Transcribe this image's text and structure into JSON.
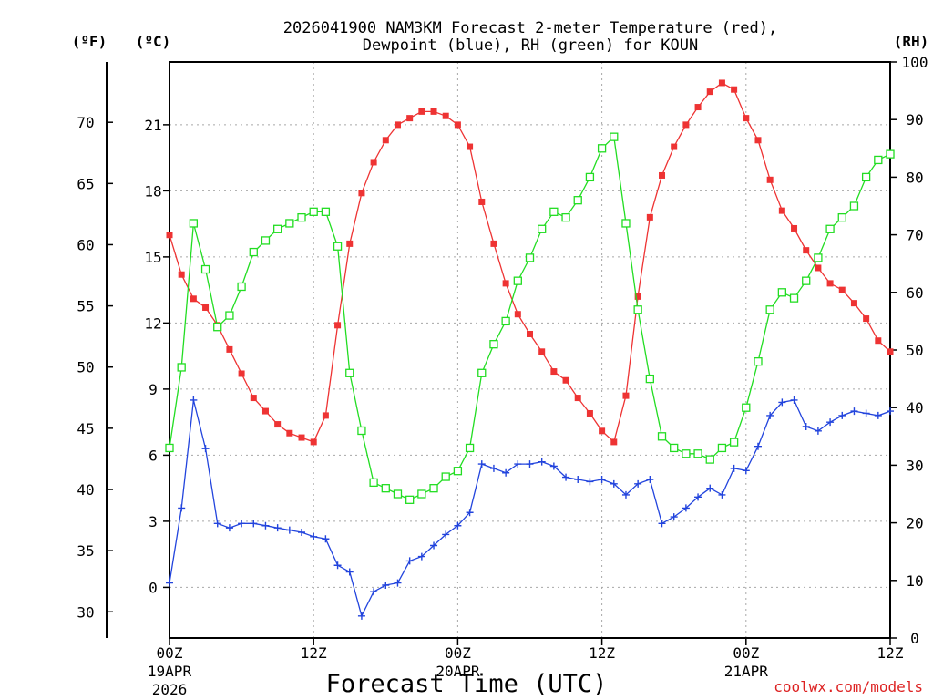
{
  "chart_data": {
    "type": "line",
    "title_line1": "2026041900 NAM3KM Forecast 2-meter Temperature (red),",
    "title_line2": "Dewpoint (blue), RH (green) for KOUN",
    "xlabel": "Forecast Time (UTC)",
    "unit_f": "(ºF)",
    "unit_c": "(ºC)",
    "unit_rh": "(RH)",
    "watermark": "coolwx.com/models",
    "x_range_hours": [
      0,
      60
    ],
    "c_range": [
      -2.3,
      23.85
    ],
    "rh_range": [
      0,
      100
    ],
    "x_ticks": [
      {
        "hour": 0,
        "line1": "00Z",
        "line2": "19APR",
        "line3": "2026"
      },
      {
        "hour": 12,
        "line1": "12Z",
        "line2": "",
        "line3": ""
      },
      {
        "hour": 24,
        "line1": "00Z",
        "line2": "20APR",
        "line3": ""
      },
      {
        "hour": 36,
        "line1": "12Z",
        "line2": "",
        "line3": ""
      },
      {
        "hour": 48,
        "line1": "00Z",
        "line2": "21APR",
        "line3": ""
      },
      {
        "hour": 60,
        "line1": "12Z",
        "line2": "",
        "line3": ""
      }
    ],
    "c_ticks": [
      "0",
      "3",
      "6",
      "9",
      "12",
      "15",
      "18",
      "21"
    ],
    "f_ticks": [
      "30",
      "35",
      "40",
      "45",
      "50",
      "55",
      "60",
      "65",
      "70"
    ],
    "rh_ticks": [
      "0",
      "10",
      "20",
      "30",
      "40",
      "50",
      "60",
      "70",
      "80",
      "90",
      "100"
    ],
    "series": [
      {
        "name": "Temperature",
        "unit": "C",
        "color": "#ee3333",
        "marker": "filled-square",
        "values": [
          16.0,
          14.2,
          13.1,
          12.7,
          11.9,
          10.8,
          9.7,
          8.6,
          8.0,
          7.4,
          7.0,
          6.8,
          6.6,
          7.8,
          11.9,
          15.6,
          17.9,
          19.3,
          20.3,
          21.0,
          21.3,
          21.6,
          21.6,
          21.4,
          21.0,
          20.0,
          17.5,
          15.6,
          13.8,
          12.4,
          11.5,
          10.7,
          9.8,
          9.4,
          8.6,
          7.9,
          7.1,
          6.6,
          8.7,
          13.2,
          16.8,
          18.7,
          20.0,
          21.0,
          21.8,
          22.5,
          22.9,
          22.6,
          21.3,
          20.3,
          18.5,
          17.1,
          16.3,
          15.3,
          14.5,
          13.8,
          13.5,
          12.9,
          12.2,
          11.2,
          10.7
        ]
      },
      {
        "name": "Dewpoint",
        "unit": "C",
        "color": "#2244dd",
        "marker": "plus",
        "values": [
          0.2,
          3.6,
          8.5,
          6.3,
          2.9,
          2.7,
          2.9,
          2.9,
          2.8,
          2.7,
          2.6,
          2.5,
          2.3,
          2.2,
          1.0,
          0.7,
          -1.3,
          -0.2,
          0.1,
          0.2,
          1.2,
          1.4,
          1.9,
          2.4,
          2.8,
          3.4,
          5.6,
          5.4,
          5.2,
          5.6,
          5.6,
          5.7,
          5.5,
          5.0,
          4.9,
          4.8,
          4.9,
          4.7,
          4.2,
          4.7,
          4.9,
          2.9,
          3.2,
          3.6,
          4.1,
          4.5,
          4.2,
          5.4,
          5.3,
          6.4,
          7.8,
          8.4,
          8.5,
          7.3,
          7.1,
          7.5,
          7.8,
          8.0,
          7.9,
          7.8,
          8.0
        ]
      },
      {
        "name": "RH",
        "unit": "%",
        "color": "#22dd22",
        "marker": "open-square",
        "values": [
          33,
          47,
          72,
          64,
          54,
          56,
          61,
          67,
          69,
          71,
          72,
          73,
          74,
          74,
          68,
          46,
          36,
          27,
          26,
          25,
          24,
          25,
          26,
          28,
          29,
          33,
          46,
          51,
          55,
          62,
          66,
          71,
          74,
          73,
          76,
          80,
          85,
          87,
          72,
          57,
          45,
          35,
          33,
          32,
          32,
          31,
          33,
          34,
          40,
          48,
          57,
          60,
          59,
          62,
          66,
          71,
          73,
          75,
          80,
          83,
          84
        ]
      }
    ]
  }
}
